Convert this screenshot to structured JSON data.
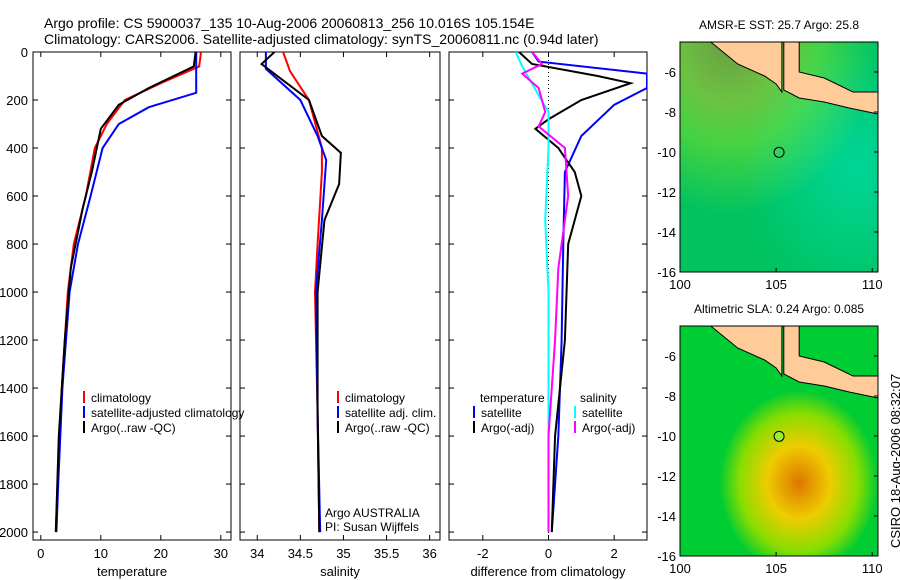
{
  "title_line1": "Argo profile: CS 5900037_135 10-Aug-2006 20060813_256 10.016S 105.154E",
  "title_line2": "Climatology: CARS2006. Satellite-adjusted climatology: synTS_20060811.nc (0.94d later)",
  "side_stamp": "CSIRO 18-Aug-2006 08:32:07",
  "colors": {
    "climatology": "#ff0000",
    "satellite": "#0000ff",
    "argo": "#000000",
    "sal_sat": "#00ffff",
    "sal_argo": "#ff00ff",
    "land": "#ffcc99"
  },
  "chart_data": [
    {
      "type": "line",
      "xlabel": "temperature",
      "ylabel": "",
      "xlim": [
        -1.3,
        31.7
      ],
      "ylim": [
        0,
        2033
      ],
      "y_reversed": true,
      "xticks": [
        0,
        10,
        20,
        30
      ],
      "yticks": [
        0,
        200,
        400,
        600,
        800,
        1000,
        1200,
        1400,
        1600,
        1800,
        2000
      ],
      "legend": [
        "climatology",
        "satellite-adjusted climatology",
        "Argo(..raw -QC)"
      ],
      "series": [
        {
          "name": "climatology",
          "color": "#ff0000",
          "points": [
            [
              26.7,
              0
            ],
            [
              26.4,
              60
            ],
            [
              20,
              130
            ],
            [
              14,
              200
            ],
            [
              11,
              300
            ],
            [
              9,
              400
            ],
            [
              7.5,
              600
            ],
            [
              5.5,
              800
            ],
            [
              4.5,
              1000
            ],
            [
              3.5,
              1400
            ],
            [
              2.8,
              1800
            ],
            [
              2.5,
              2000
            ]
          ]
        },
        {
          "name": "satellite-adjusted climatology",
          "color": "#0000ff",
          "points": [
            [
              25.9,
              0
            ],
            [
              25.9,
              170
            ],
            [
              18,
              230
            ],
            [
              13,
              300
            ],
            [
              10.3,
              400
            ],
            [
              8.3,
              600
            ],
            [
              6.2,
              800
            ],
            [
              4.8,
              1000
            ],
            [
              3.6,
              1400
            ],
            [
              2.9,
              1800
            ],
            [
              2.6,
              2000
            ]
          ]
        },
        {
          "name": "Argo(..raw -QC)",
          "color": "#000000",
          "points": [
            [
              25.8,
              0
            ],
            [
              25.5,
              60
            ],
            [
              18,
              150
            ],
            [
              13,
              220
            ],
            [
              10,
              320
            ],
            [
              8.5,
              500
            ],
            [
              7,
              650
            ],
            [
              5,
              900
            ],
            [
              4,
              1200
            ],
            [
              3,
              1600
            ],
            [
              2.5,
              2000
            ]
          ]
        }
      ]
    },
    {
      "type": "line",
      "xlabel": "salinity",
      "xlim": [
        33.8,
        36.12
      ],
      "ylim": [
        0,
        2033
      ],
      "y_reversed": true,
      "xticks": [
        34,
        34.5,
        35,
        35.5,
        36
      ],
      "legend": [
        "climatology",
        "satellite adj. clim.",
        "Argo(..raw -QC)"
      ],
      "annotation": [
        "Argo AUSTRALIA",
        "PI: Susan Wijffels"
      ],
      "series": [
        {
          "name": "climatology",
          "color": "#ff0000",
          "points": [
            [
              34.3,
              0
            ],
            [
              34.38,
              80
            ],
            [
              34.6,
              200
            ],
            [
              34.75,
              400
            ],
            [
              34.75,
              500
            ],
            [
              34.7,
              800
            ],
            [
              34.67,
              1000
            ],
            [
              34.7,
              1500
            ],
            [
              34.72,
              2000
            ]
          ]
        },
        {
          "name": "satellite adj. clim.",
          "color": "#0000ff",
          "points": [
            [
              34.1,
              0
            ],
            [
              34.1,
              70
            ],
            [
              34.5,
              200
            ],
            [
              34.7,
              350
            ],
            [
              34.8,
              450
            ],
            [
              34.75,
              700
            ],
            [
              34.68,
              1000
            ],
            [
              34.7,
              1500
            ],
            [
              34.73,
              2000
            ]
          ]
        },
        {
          "name": "Argo(..raw -QC)",
          "color": "#000000",
          "points": [
            [
              34.2,
              0
            ],
            [
              34.05,
              50
            ],
            [
              34.6,
              200
            ],
            [
              34.75,
              350
            ],
            [
              34.97,
              420
            ],
            [
              34.95,
              550
            ],
            [
              34.78,
              700
            ],
            [
              34.7,
              1000
            ],
            [
              34.7,
              1500
            ],
            [
              34.72,
              2000
            ]
          ]
        }
      ]
    },
    {
      "type": "line",
      "xlabel": "difference from climatology",
      "xlim": [
        -3.03,
        3.0
      ],
      "ylim": [
        0,
        2033
      ],
      "y_reversed": true,
      "xticks": [
        -2,
        0,
        2
      ],
      "legend_temperature_title": "temperature",
      "legend_salinity_title": "salinity",
      "legend": [
        "satellite",
        "Argo(-adj)",
        "satellite",
        "Argo(-adj)"
      ],
      "series": [
        {
          "name": "temperature satellite",
          "color": "#0000ff",
          "points": [
            [
              -0.5,
              0
            ],
            [
              -0.3,
              40
            ],
            [
              3,
              90
            ],
            [
              3,
              150
            ],
            [
              2,
              220
            ],
            [
              1,
              350
            ],
            [
              0.5,
              500
            ],
            [
              0.45,
              800
            ],
            [
              0.4,
              1200
            ],
            [
              0.3,
              1600
            ],
            [
              0.1,
              2000
            ]
          ]
        },
        {
          "name": "temperature Argo(-adj)",
          "color": "#000000",
          "points": [
            [
              -0.9,
              0
            ],
            [
              -0.5,
              50
            ],
            [
              1.5,
              100
            ],
            [
              2.5,
              130
            ],
            [
              1,
              200
            ],
            [
              0,
              280
            ],
            [
              -0.4,
              320
            ],
            [
              0.3,
              400
            ],
            [
              0.8,
              500
            ],
            [
              1,
              600
            ],
            [
              0.6,
              800
            ],
            [
              0.5,
              1200
            ],
            [
              0.2,
              1600
            ],
            [
              0.1,
              2000
            ]
          ]
        },
        {
          "name": "salinity satellite",
          "color": "#00ffff",
          "points": [
            [
              -1,
              0
            ],
            [
              -0.8,
              60
            ],
            [
              -0.3,
              180
            ],
            [
              0,
              250
            ],
            [
              0,
              400
            ],
            [
              -0.1,
              700
            ],
            [
              0,
              1000
            ],
            [
              0,
              1500
            ],
            [
              0,
              2000
            ]
          ]
        },
        {
          "name": "salinity Argo(-adj)",
          "color": "#ff00ff",
          "points": [
            [
              -0.5,
              0
            ],
            [
              -0.2,
              50
            ],
            [
              -0.8,
              90
            ],
            [
              -0.3,
              150
            ],
            [
              -0.1,
              250
            ],
            [
              -0.3,
              310
            ],
            [
              0.5,
              400
            ],
            [
              0.6,
              600
            ],
            [
              0.3,
              900
            ],
            [
              0.2,
              1200
            ],
            [
              0,
              1600
            ],
            [
              0,
              2000
            ]
          ]
        }
      ]
    },
    {
      "type": "heatmap",
      "title": "AMSR-E SST: 25.7 Argo: 25.8",
      "xticks": [
        100,
        105,
        110
      ],
      "yticks": [
        -6,
        -8,
        -10,
        -12,
        -14,
        -16
      ],
      "xlim": [
        100,
        110.3
      ],
      "ylim": [
        -16,
        -4.5
      ],
      "float_position": [
        105.154,
        -10.016
      ]
    },
    {
      "type": "heatmap",
      "title": "Altimetric SLA: 0.24 Argo: 0.085",
      "xticks": [
        100,
        105,
        110
      ],
      "yticks": [
        -6,
        -8,
        -10,
        -12,
        -14,
        -16
      ],
      "xlim": [
        100,
        110.3
      ],
      "ylim": [
        -16,
        -4.5
      ],
      "float_position": [
        105.154,
        -10.016
      ]
    }
  ]
}
